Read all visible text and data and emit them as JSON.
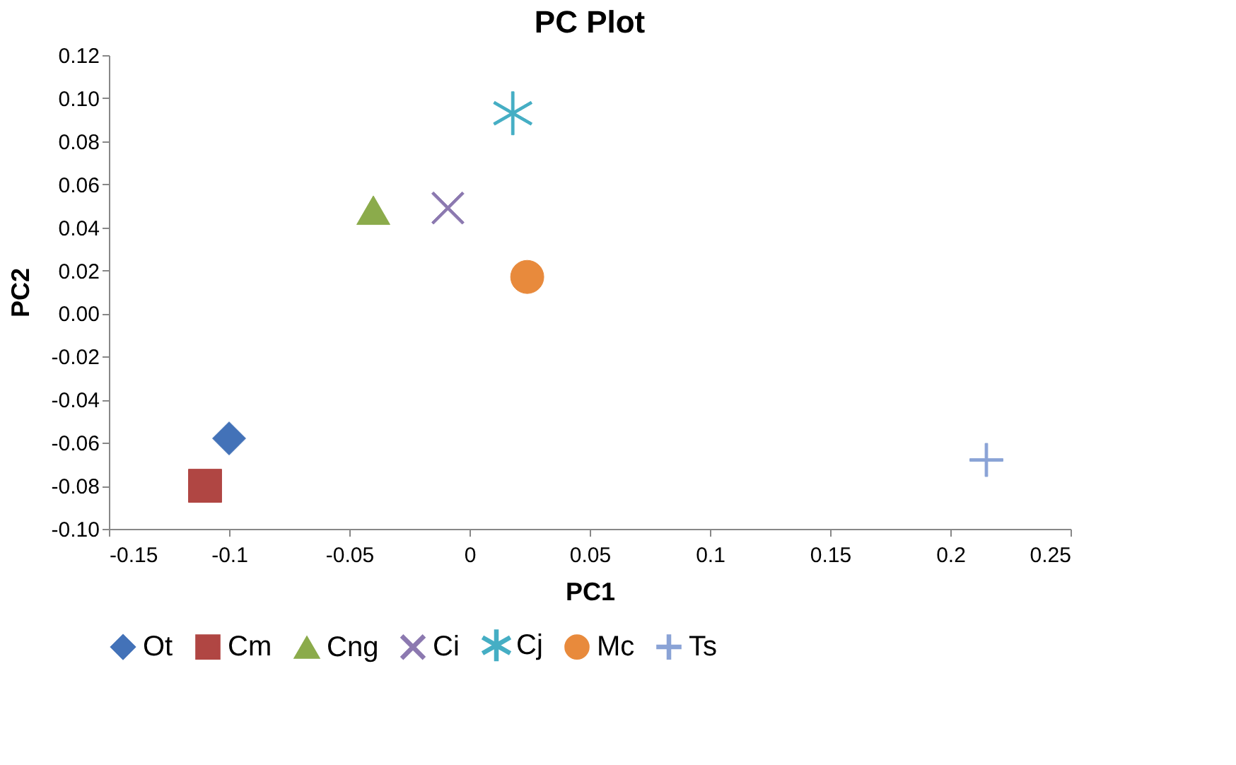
{
  "chart_data": {
    "type": "scatter",
    "title": "PC Plot",
    "xlabel": "PC1",
    "ylabel": "PC2",
    "xlim": [
      -0.15,
      0.25
    ],
    "xticks": [
      -0.15,
      -0.1,
      -0.05,
      0,
      0.05,
      0.1,
      0.15,
      0.2,
      0.25
    ],
    "ylim": [
      -0.1,
      0.12
    ],
    "yticks": [
      {
        "value": -0.1,
        "label": "-0.10"
      },
      {
        "value": -0.08,
        "label": "-0.08"
      },
      {
        "value": -0.06,
        "label": "-0.06"
      },
      {
        "value": -0.04,
        "label": "-0.04"
      },
      {
        "value": -0.02,
        "label": "-0.02"
      },
      {
        "value": 0,
        "label": "0.00"
      },
      {
        "value": 0.02,
        "label": "0.02"
      },
      {
        "value": 0.04,
        "label": "0.04"
      },
      {
        "value": 0.06,
        "label": "0.06"
      },
      {
        "value": 0.08,
        "label": "0.08"
      },
      {
        "value": 0.1,
        "label": "0.10"
      },
      {
        "value": 0.12,
        "label": "0.12"
      }
    ],
    "grid": false,
    "legend": "bottom",
    "series": [
      {
        "name": "Ot",
        "color": "#4372b8",
        "marker": "diamond",
        "x": [
          -0.1
        ],
        "values": [
          -0.058
        ]
      },
      {
        "name": "Cm",
        "color": "#b04643",
        "marker": "square",
        "x": [
          -0.11
        ],
        "values": [
          -0.08
        ]
      },
      {
        "name": "Cng",
        "color": "#8bab4b",
        "marker": "triangle",
        "x": [
          -0.04
        ],
        "values": [
          0.048
        ]
      },
      {
        "name": "Ci",
        "color": "#8c79b0",
        "marker": "cross",
        "x": [
          -0.009
        ],
        "values": [
          0.049
        ]
      },
      {
        "name": "Cj",
        "color": "#45aec4",
        "marker": "star",
        "x": [
          0.018
        ],
        "values": [
          0.093
        ]
      },
      {
        "name": "Mc",
        "color": "#e88a3c",
        "marker": "circle",
        "x": [
          0.024
        ],
        "values": [
          0.017
        ]
      },
      {
        "name": "Ts",
        "color": "#8aa3d6",
        "x": [
          0.215
        ],
        "values": [
          -0.068
        ]
      }
    ]
  }
}
